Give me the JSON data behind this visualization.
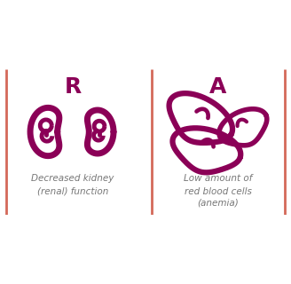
{
  "bg_color": "#ffffff",
  "border_color": "#d4695a",
  "accent_color": "#8b0057",
  "text_color": "#777777",
  "letter_color": "#8b0057",
  "left_letter": "R",
  "right_letter": "A",
  "left_text_line1": "Decreased kidney",
  "left_text_line2": "(renal) function",
  "right_text_line1": "Low amount of",
  "right_text_line2": "red blood cells",
  "right_text_line3": "(anemia)",
  "figsize": [
    3.28,
    3.2
  ],
  "dpi": 100
}
